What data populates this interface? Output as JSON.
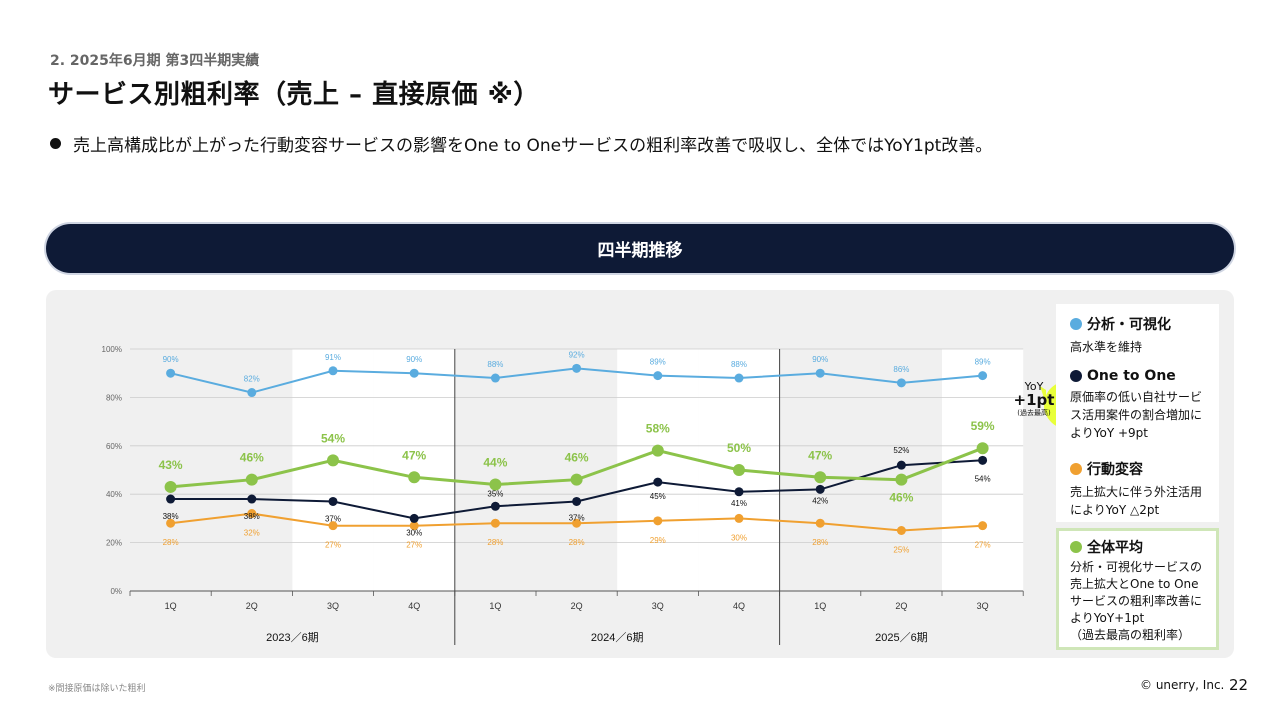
{
  "header": {
    "section_label": "2. 2025年6月期 第3四半期実績",
    "title": "サービス別粗利率（売上 – 直接原価 ※）",
    "bullet": "売上高構成比が上がった行動変容サービスの影響をOne to Oneサービスの粗利率改善で吸収し、全体ではYoY1pt改善。"
  },
  "banner": {
    "label": "四半期推移"
  },
  "legend": [
    {
      "name": "分析・可視化",
      "color": "#5aacdf",
      "desc": "高水準を維持"
    },
    {
      "name": "One to One",
      "color": "#0e1a36",
      "desc": "原価率の低い自社サービス活用案件の割合増加によりYoY +9pt"
    },
    {
      "name": "行動変容",
      "color": "#f0a030",
      "desc": "売上拡大に伴う外注活用によりYoY △2pt"
    },
    {
      "name": "全体平均",
      "color": "#8cc34a",
      "desc": "分析・可視化サービスの売上拡大とOne to Oneサービスの粗利率改善によりYoY+1pt\n（過去最高の粗利率）"
    }
  ],
  "callout": {
    "line1": "YoY",
    "line2": "+1pt",
    "line3": "(過去最高)"
  },
  "chart_data": {
    "type": "line",
    "categories": [
      "1Q",
      "2Q",
      "3Q",
      "4Q",
      "1Q",
      "2Q",
      "3Q",
      "4Q",
      "1Q",
      "2Q",
      "3Q"
    ],
    "period_labels": [
      "2023／6期",
      "2024／6期",
      "2025／6期"
    ],
    "yticks": [
      "0%",
      "20%",
      "40%",
      "60%",
      "80%",
      "100%"
    ],
    "ylim": [
      0,
      100
    ],
    "series": [
      {
        "name": "分析・可視化",
        "color": "#5aacdf",
        "values": [
          90,
          82,
          91,
          90,
          88,
          92,
          89,
          88,
          90,
          86,
          89
        ],
        "labels": [
          "90%",
          "82%",
          "91%",
          "90%",
          "88%",
          "92%",
          "89%",
          "88%",
          "90%",
          "86%",
          "89%"
        ]
      },
      {
        "name": "One to One",
        "color": "#0e1a36",
        "values": [
          38,
          38,
          37,
          30,
          35,
          37,
          45,
          41,
          42,
          52,
          54
        ],
        "labels": [
          "38%",
          "38%",
          "37%",
          "30%",
          "35%",
          "37%",
          "45%",
          "41%",
          "42%",
          "52%",
          "54%"
        ]
      },
      {
        "name": "行動変容",
        "color": "#f0a030",
        "values": [
          28,
          32,
          27,
          27,
          28,
          28,
          29,
          30,
          28,
          25,
          27
        ],
        "labels": [
          "28%",
          "32%",
          "27%",
          "27%",
          "28%",
          "28%",
          "29%",
          "30%",
          "28%",
          "25%",
          "27%"
        ]
      },
      {
        "name": "全体平均",
        "color": "#8cc34a",
        "values": [
          43,
          46,
          54,
          47,
          44,
          46,
          58,
          50,
          47,
          46,
          59
        ],
        "labels": [
          "43%",
          "46%",
          "54%",
          "47%",
          "44%",
          "46%",
          "58%",
          "50%",
          "47%",
          "46%",
          "59%"
        ]
      }
    ]
  },
  "footer": {
    "footnote": "※間接原価は除いた粗利",
    "copyright": "© unerry, Inc.",
    "page_number": "22"
  }
}
